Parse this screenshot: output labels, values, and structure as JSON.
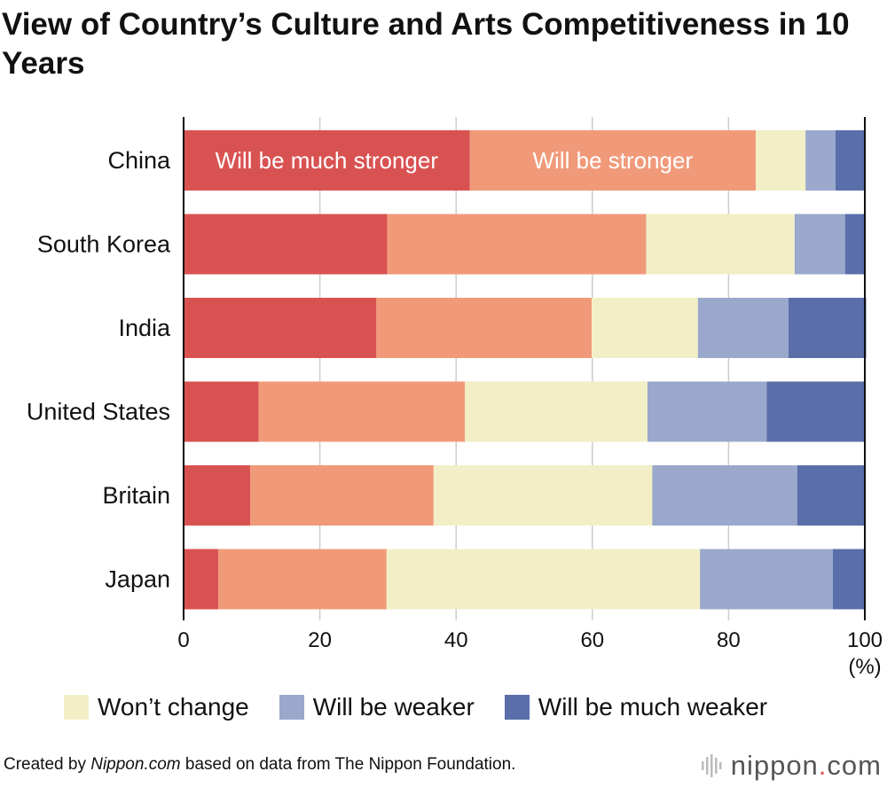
{
  "title": "View of Country’s Culture and Arts Competitiveness in 10 Years",
  "footer": {
    "prefix": "Created by ",
    "site": "Nippon.com",
    "suffix": " based on data from The Nippon Foundation."
  },
  "brand": {
    "name": "nippon",
    "dot": ".",
    "tld": "com"
  },
  "chart_data": {
    "type": "bar",
    "orientation": "horizontal",
    "stacked": true,
    "title": "View of Country’s Culture and Arts Competitiveness in 10 Years",
    "xlabel": "(%)",
    "xlim": [
      0,
      100
    ],
    "xticks": [
      0,
      20,
      40,
      60,
      80,
      100
    ],
    "grid": true,
    "categories": [
      "China",
      "South Korea",
      "India",
      "United States",
      "Britain",
      "Japan"
    ],
    "series": [
      {
        "name": "Will be much stronger",
        "color": "#d95252",
        "values": [
          42.0,
          29.9,
          28.3,
          11.0,
          9.8,
          5.1
        ]
      },
      {
        "name": "Will be stronger",
        "color": "#f09a7a",
        "values": [
          42.0,
          38.0,
          31.6,
          30.3,
          26.9,
          24.7
        ]
      },
      {
        "name": "Won’t change",
        "color": "#f2efc6",
        "values": [
          7.3,
          21.8,
          15.6,
          26.8,
          32.1,
          46.0
        ]
      },
      {
        "name": "Will be weaker",
        "color": "#9aa8cc",
        "values": [
          4.4,
          7.4,
          13.3,
          17.5,
          21.3,
          19.5
        ]
      },
      {
        "name": "Will be much weaker",
        "color": "#5a6eaa",
        "values": [
          4.3,
          3.0,
          11.4,
          14.5,
          9.8,
          4.7
        ]
      }
    ],
    "inline_labels": [
      "Will be much stronger",
      "Will be stronger"
    ],
    "legend_items": [
      "Won’t change",
      "Will be weaker",
      "Will be much weaker"
    ],
    "legend_position": "bottom"
  }
}
